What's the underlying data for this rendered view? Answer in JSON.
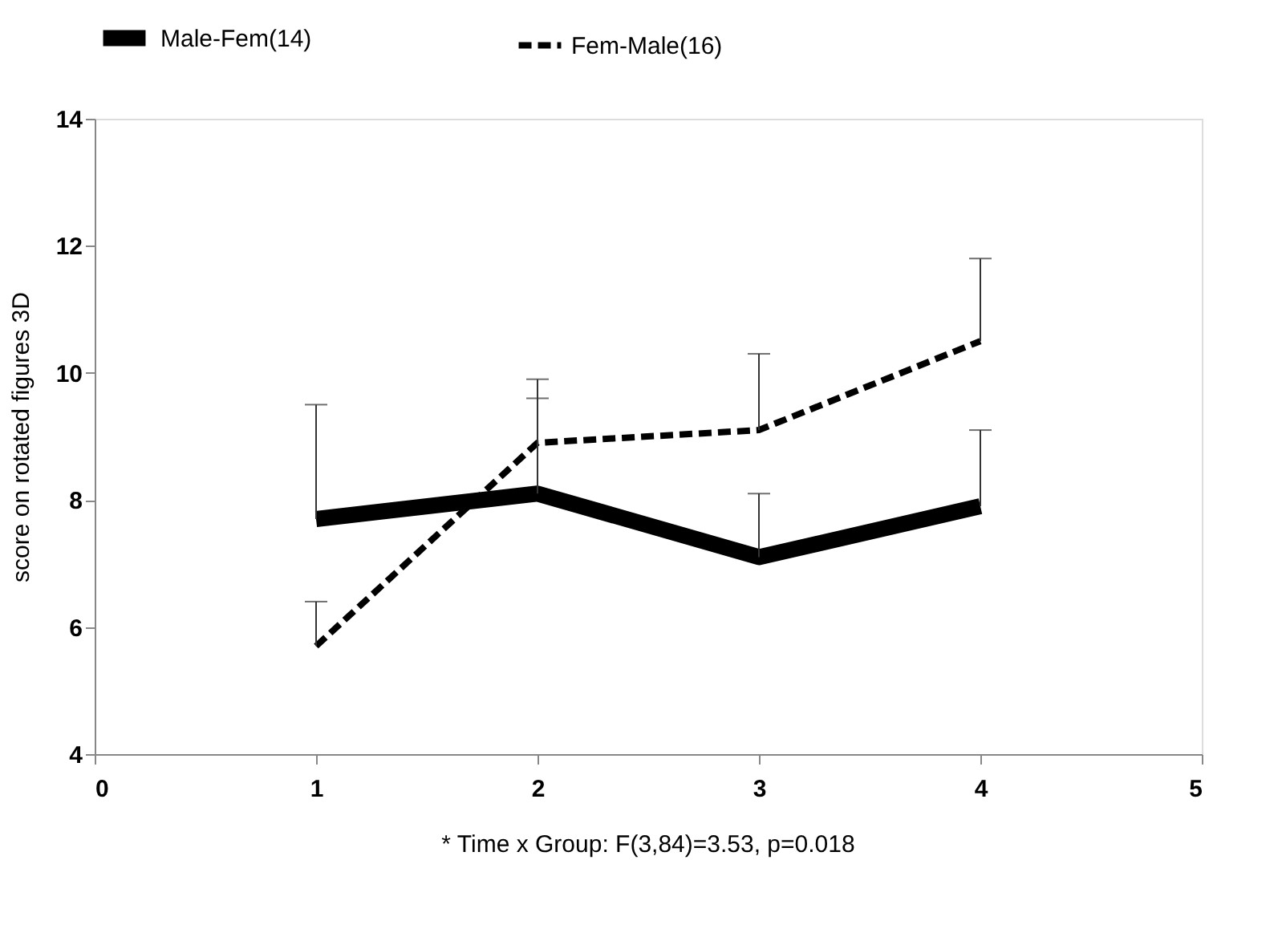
{
  "chart_data": {
    "type": "line",
    "ylabel": "score on rotated figures 3D",
    "x": [
      1,
      2,
      3,
      4
    ],
    "series": [
      {
        "name": "Male-Fem(14)",
        "color": "#000000",
        "line_style": "solid",
        "values": [
          7.7,
          8.1,
          7.1,
          7.9
        ],
        "errors": [
          [
            7.7,
            9.5
          ],
          [
            8.1,
            9.6
          ],
          [
            7.1,
            8.1
          ],
          [
            7.9,
            9.1
          ]
        ]
      },
      {
        "name": "Fem-Male(16)",
        "color": "#000000",
        "line_style": "dashed",
        "values": [
          5.7,
          8.9,
          9.1,
          10.5
        ],
        "errors": [
          [
            5.7,
            6.4
          ],
          [
            8.9,
            9.9
          ],
          [
            9.1,
            10.3
          ],
          [
            10.5,
            11.8
          ]
        ]
      }
    ],
    "xlim": [
      0,
      5
    ],
    "xticks": [
      0,
      1,
      2,
      3,
      4,
      5
    ],
    "ylim": [
      4,
      14
    ],
    "yticks": [
      4,
      6,
      8,
      10,
      12,
      14
    ],
    "grid": false,
    "legend": "top",
    "marker": "none",
    "annotations": [
      "* Time x Group: F(3,84)=3.53, p=0.018"
    ]
  }
}
